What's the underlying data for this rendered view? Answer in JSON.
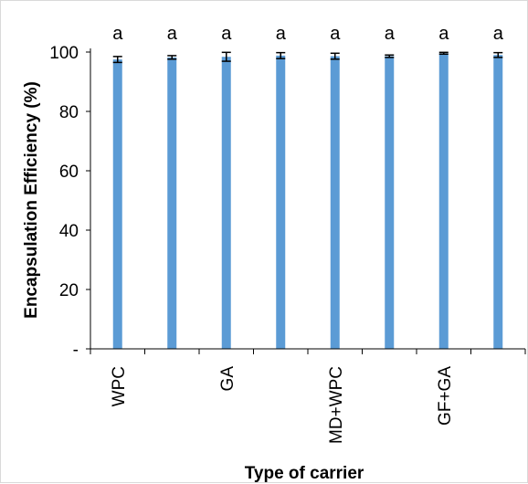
{
  "chart_data": {
    "type": "bar",
    "xlabel": "Type of carrier",
    "ylabel": "Encapsulation Efficiency (%)",
    "ylim": [
      0,
      100
    ],
    "yticks": [
      0,
      20,
      40,
      60,
      80,
      100
    ],
    "ytick_labels": [
      "-",
      "20",
      "40",
      "60",
      "80",
      "100"
    ],
    "grid": false,
    "legend": "none",
    "categories": [
      "WPC",
      "",
      "GA",
      "",
      "MD+WPC",
      "",
      "GF+GA",
      ""
    ],
    "values": [
      97.5,
      98.2,
      98.4,
      98.8,
      98.6,
      98.6,
      99.6,
      99.0
    ],
    "errors": [
      1.0,
      0.6,
      1.5,
      1.0,
      1.0,
      0.4,
      0.3,
      0.8
    ],
    "significance_labels": [
      "a",
      "a",
      "a",
      "a",
      "a",
      "a",
      "a",
      "a"
    ],
    "bar_color": "#5b9bd5"
  }
}
